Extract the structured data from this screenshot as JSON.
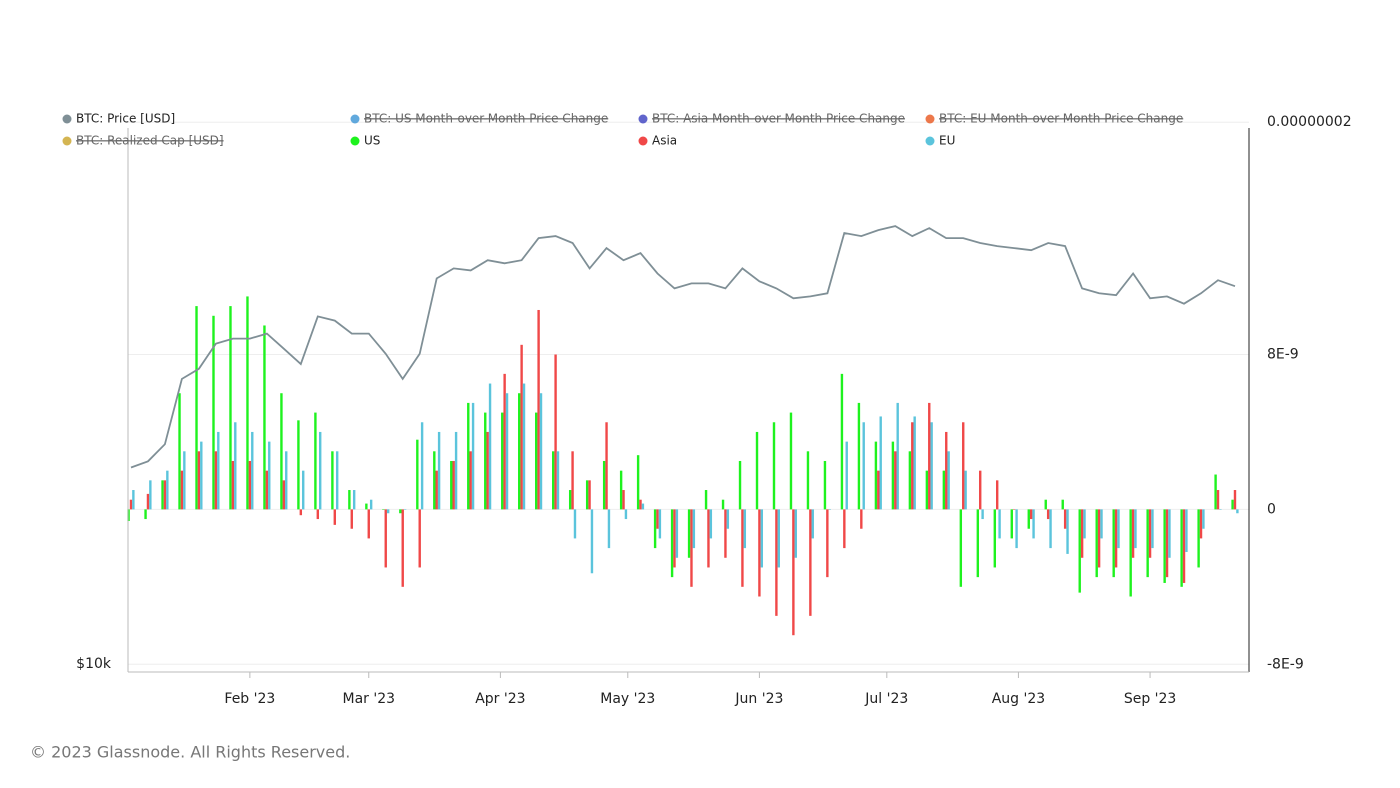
{
  "chart_data": {
    "type": "bar",
    "footer": "© 2023 Glassnode. All Rights Reserved.",
    "x": [
      4,
      8,
      12,
      16,
      20,
      24,
      28,
      32,
      36,
      40,
      44,
      48,
      52,
      56,
      60,
      64,
      68,
      72,
      76,
      80,
      84,
      88,
      92,
      96,
      100,
      104,
      108,
      112,
      116,
      120,
      124,
      128,
      132,
      136,
      140,
      144,
      148,
      152,
      156,
      160,
      164,
      168,
      172,
      176,
      180,
      184,
      188,
      192,
      196,
      200,
      204,
      208,
      212,
      216,
      220,
      224,
      228,
      232,
      236,
      240,
      244,
      248,
      252,
      256,
      260,
      264
    ],
    "xlim": [
      3.3,
      267.3
    ],
    "xticks": [
      {
        "value": 32,
        "label": "Feb '23"
      },
      {
        "value": 60,
        "label": "Mar '23"
      },
      {
        "value": 91,
        "label": "Apr '23"
      },
      {
        "value": 121,
        "label": "May '23"
      },
      {
        "value": 152,
        "label": "Jun '23"
      },
      {
        "value": 182,
        "label": "Jul '23"
      },
      {
        "value": 213,
        "label": "Aug '23"
      },
      {
        "value": 244,
        "label": "Sep '23"
      }
    ],
    "ylim": [
      10000,
      39000
    ],
    "log_scale": true,
    "yticks": [
      {
        "value": 10000,
        "label": "$10k"
      }
    ],
    "y2lim": [
      -8.4e-09,
      1.97e-08
    ],
    "y2ticks": [
      {
        "value": 2e-08,
        "label": "0.00000002"
      },
      {
        "value": 8e-09,
        "label": "8E-9"
      },
      0,
      {
        "value": -8e-09,
        "label": "-8E-9"
      }
    ],
    "grid": true,
    "series": [
      {
        "name": "BTC: Price [USD]",
        "color": "#7f8f96",
        "type": "line",
        "axis": "y",
        "values": [
          16680,
          16940,
          17680,
          20820,
          21350,
          22740,
          23030,
          23030,
          23320,
          22450,
          21610,
          24340,
          24090,
          23320,
          23320,
          22170,
          20820,
          22170,
          26770,
          27450,
          27310,
          28020,
          27800,
          28020,
          29610,
          29760,
          29250,
          27450,
          28880,
          28020,
          28520,
          27100,
          26110,
          26440,
          26440,
          26110,
          27450,
          26580,
          26110,
          25470,
          25590,
          25790,
          29990,
          29760,
          30210,
          30510,
          29760,
          30360,
          29610,
          29610,
          29250,
          29020,
          28880,
          28730,
          29250,
          29020,
          26110,
          25790,
          25670,
          27100,
          25470,
          25590,
          25130,
          25790,
          26650,
          26250
        ]
      },
      {
        "name": "BTC: US Month-over-Month Price Change",
        "color": "#3a93d4",
        "hidden": true
      },
      {
        "name": "BTC: Asia Month-over-Month Price Change",
        "color": "#3a3fbf",
        "hidden": true
      },
      {
        "name": "BTC: EU Month-over-Month Price Change",
        "color": "#e8561e",
        "hidden": true
      },
      {
        "name": "BTC: Realized Cap [USD]",
        "color": "#c9a227",
        "hidden": true
      },
      {
        "name": "US",
        "color": "#1ef21e",
        "type": "bar",
        "axis": "y2",
        "values": [
          -6e-10,
          -5e-10,
          1.5e-09,
          6e-09,
          1.05e-08,
          1e-08,
          1.05e-08,
          1.1e-08,
          9.5e-09,
          6e-09,
          4.6e-09,
          5e-09,
          3e-09,
          1e-09,
          3e-10,
          0,
          -2e-10,
          3.6e-09,
          3e-09,
          2.5e-09,
          5.5e-09,
          5e-09,
          5e-09,
          6e-09,
          5e-09,
          3e-09,
          1e-09,
          1.5e-09,
          2.5e-09,
          2e-09,
          2.8e-09,
          -2e-09,
          -3.5e-09,
          -2.5e-09,
          1e-09,
          5e-10,
          2.5e-09,
          4e-09,
          4.5e-09,
          5e-09,
          3e-09,
          2.5e-09,
          7e-09,
          5.5e-09,
          3.5e-09,
          3.5e-09,
          3e-09,
          2e-09,
          2e-09,
          -4e-09,
          -3.5e-09,
          -3e-09,
          -1.5e-09,
          -1e-09,
          5e-10,
          5e-10,
          -4.3e-09,
          -3.5e-09,
          -3.5e-09,
          -4.5e-09,
          -3.5e-09,
          -3.8e-09,
          -4e-09,
          -3e-09,
          1.8e-09,
          5e-10
        ]
      },
      {
        "name": "Asia",
        "color": "#f04848",
        "type": "bar",
        "axis": "y2",
        "values": [
          5e-10,
          8e-10,
          1.5e-09,
          2e-09,
          3e-09,
          3e-09,
          2.5e-09,
          2.5e-09,
          2e-09,
          1.5e-09,
          -3e-10,
          -5e-10,
          -8e-10,
          -1e-09,
          -1.5e-09,
          -3e-09,
          -4e-09,
          -3e-09,
          2e-09,
          2.5e-09,
          3e-09,
          4e-09,
          7e-09,
          8.5e-09,
          1.03e-08,
          8e-09,
          3e-09,
          1.5e-09,
          4.5e-09,
          1e-09,
          5e-10,
          -1e-09,
          -3e-09,
          -4e-09,
          -3e-09,
          -2.5e-09,
          -4e-09,
          -4.5e-09,
          -5.5e-09,
          -6.5e-09,
          -5.5e-09,
          -3.5e-09,
          -2e-09,
          -1e-09,
          2e-09,
          3e-09,
          4.5e-09,
          5.5e-09,
          4e-09,
          4.5e-09,
          2e-09,
          1.5e-09,
          0,
          -5e-10,
          -5e-10,
          -1e-09,
          -2.5e-09,
          -3e-09,
          -3e-09,
          -2.5e-09,
          -2.5e-09,
          -3.5e-09,
          -3.8e-09,
          -1.5e-09,
          1e-09,
          1e-09
        ]
      },
      {
        "name": "EU",
        "color": "#5bc4dc",
        "type": "bar",
        "axis": "y2",
        "values": [
          1e-09,
          1.5e-09,
          2e-09,
          3e-09,
          3.5e-09,
          4e-09,
          4.5e-09,
          4e-09,
          3.5e-09,
          3e-09,
          2e-09,
          4e-09,
          3e-09,
          1e-09,
          5e-10,
          -2e-10,
          0,
          4.5e-09,
          4e-09,
          4e-09,
          5.5e-09,
          6.5e-09,
          6e-09,
          6.5e-09,
          6e-09,
          3e-09,
          -1.5e-09,
          -3.3e-09,
          -2e-09,
          -5e-10,
          3e-10,
          -1.5e-09,
          -2.5e-09,
          -2e-09,
          -1.5e-09,
          -1e-09,
          -2e-09,
          -3e-09,
          -3e-09,
          -2.5e-09,
          -1.5e-09,
          0,
          3.5e-09,
          4.5e-09,
          4.8e-09,
          5.5e-09,
          4.8e-09,
          4.5e-09,
          3e-09,
          2e-09,
          -5e-10,
          -1.5e-09,
          -2e-09,
          -1.5e-09,
          -2e-09,
          -2.3e-09,
          -1.5e-09,
          -1.5e-09,
          -2e-09,
          -2e-09,
          -2e-09,
          -2.5e-09,
          -2.2e-09,
          -1e-09,
          0,
          -2e-10
        ]
      }
    ]
  }
}
